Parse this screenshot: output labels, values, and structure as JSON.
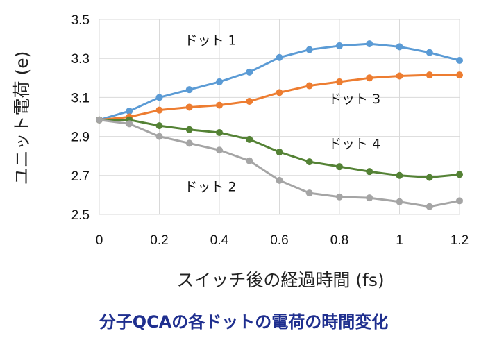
{
  "chart_data": {
    "type": "line",
    "caption": "分子QCAの各ドットの電荷の時間変化",
    "xlabel": "スイッチ後の経過時間 (fs)",
    "ylabel": "ユニット電荷 (e)",
    "xlim": [
      0,
      1.2
    ],
    "ylim": [
      2.5,
      3.5
    ],
    "x_ticks": [
      "0",
      "0.2",
      "0.4",
      "0.6",
      "0.8",
      "1",
      "1.2"
    ],
    "y_ticks": [
      "2.5",
      "2.7",
      "2.9",
      "3.1",
      "3.3",
      "3.5"
    ],
    "grid": true,
    "legend": "none",
    "x": [
      0,
      0.1,
      0.2,
      0.3,
      0.4,
      0.5,
      0.6,
      0.7,
      0.8,
      0.9,
      1.0,
      1.1,
      1.2
    ],
    "series": [
      {
        "name": "ドット 1",
        "color": "#5b9bd5",
        "values": [
          2.985,
          3.03,
          3.1,
          3.14,
          3.18,
          3.23,
          3.305,
          3.345,
          3.365,
          3.375,
          3.36,
          3.33,
          3.29
        ]
      },
      {
        "name": "ドット 3",
        "color": "#ed7d31",
        "values": [
          2.985,
          3.0,
          3.035,
          3.05,
          3.06,
          3.08,
          3.125,
          3.16,
          3.18,
          3.2,
          3.21,
          3.215,
          3.215
        ]
      },
      {
        "name": "ドット 4",
        "color": "#548235",
        "values": [
          2.985,
          2.985,
          2.955,
          2.935,
          2.92,
          2.885,
          2.82,
          2.77,
          2.745,
          2.72,
          2.7,
          2.69,
          2.705
        ]
      },
      {
        "name": "ドット 2",
        "color": "#a5a5a5",
        "values": [
          2.985,
          2.965,
          2.9,
          2.865,
          2.83,
          2.775,
          2.675,
          2.61,
          2.59,
          2.585,
          2.565,
          2.54,
          2.57
        ]
      }
    ]
  }
}
